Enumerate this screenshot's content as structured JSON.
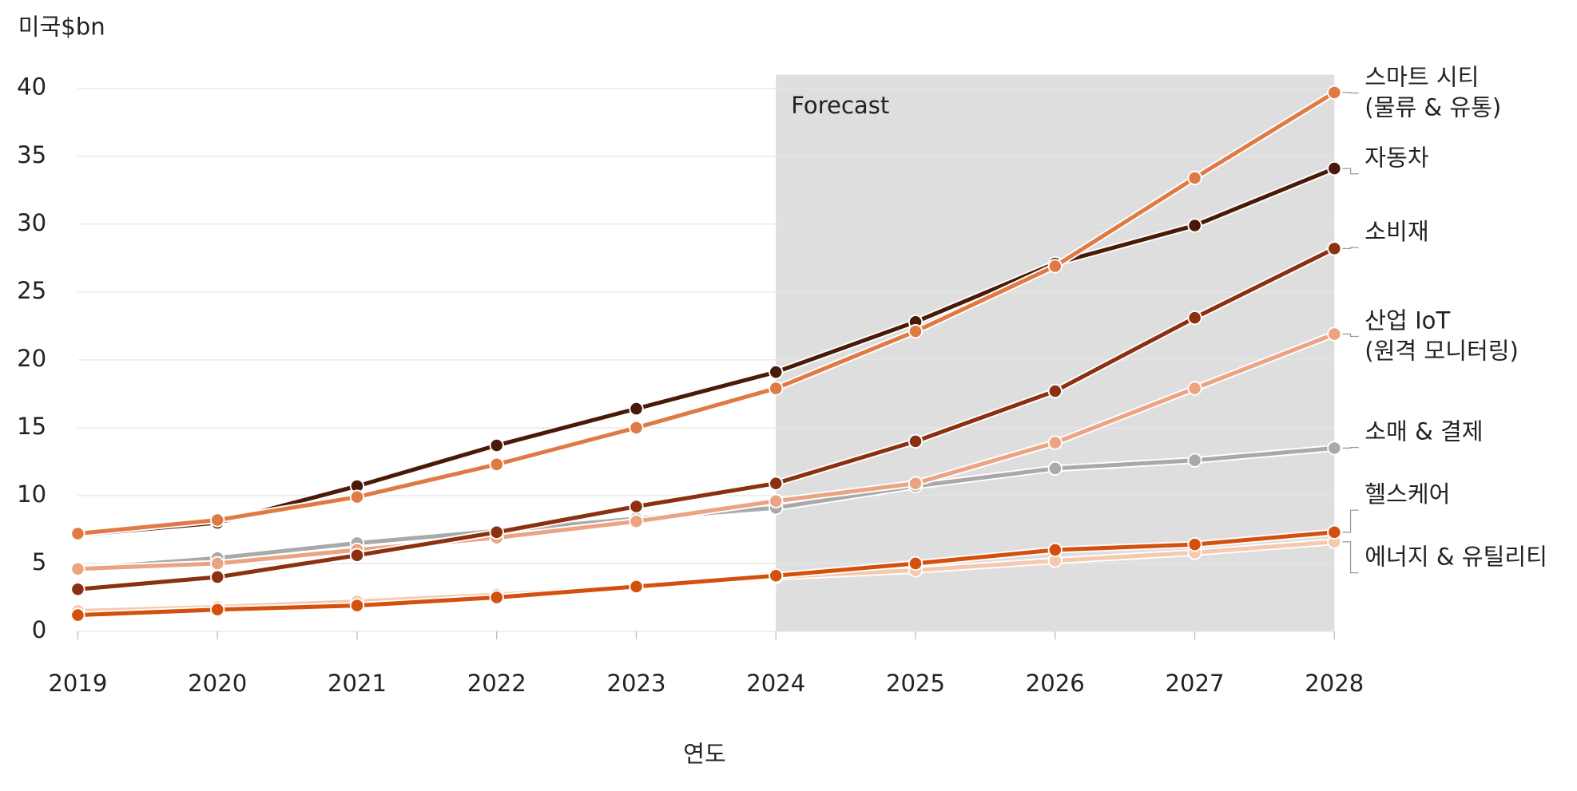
{
  "chart_data": {
    "type": "line",
    "y_label": "미국$bn",
    "x_label": "연도",
    "x": [
      2019,
      2020,
      2021,
      2022,
      2023,
      2024,
      2025,
      2026,
      2027,
      2028
    ],
    "xlim": [
      2019,
      2028
    ],
    "xticks": [
      2019,
      2020,
      2021,
      2022,
      2023,
      2024,
      2025,
      2026,
      2027,
      2028
    ],
    "ylim": [
      0,
      41
    ],
    "yticks": [
      0,
      5,
      10,
      15,
      20,
      25,
      30,
      35,
      40
    ],
    "grid": true,
    "forecast": {
      "label": "Forecast",
      "start": 2024,
      "end": 2028,
      "color": "#dedede"
    },
    "series": [
      {
        "name": "스마트 시티\n(물류 & 유통)",
        "color": "#e07a45",
        "values": [
          7.2,
          8.2,
          9.9,
          12.3,
          15.0,
          17.9,
          22.1,
          26.9,
          33.4,
          39.7
        ]
      },
      {
        "name": "자동차",
        "color": "#4a1a08",
        "values": [
          7.1,
          8.0,
          10.7,
          13.7,
          16.4,
          19.1,
          22.8,
          27.1,
          29.9,
          34.1
        ]
      },
      {
        "name": "소비재",
        "color": "#8b3010",
        "values": [
          3.1,
          4.0,
          5.6,
          7.3,
          9.2,
          10.9,
          14.0,
          17.7,
          23.1,
          28.2
        ]
      },
      {
        "name": "산업 IoT\n(원격 모니터링)",
        "color": "#eba382",
        "values": [
          4.6,
          5.0,
          6.0,
          6.9,
          8.1,
          9.6,
          10.9,
          13.9,
          17.9,
          21.9
        ]
      },
      {
        "name": "소매 & 결제",
        "color": "#a9a9a9",
        "values": [
          4.6,
          5.4,
          6.5,
          7.4,
          8.3,
          9.1,
          10.7,
          12.0,
          12.6,
          13.5
        ]
      },
      {
        "name": "헬스케어",
        "color": "#d4500e",
        "values": [
          1.2,
          1.6,
          1.9,
          2.5,
          3.3,
          4.1,
          5.0,
          6.0,
          6.4,
          7.3
        ]
      },
      {
        "name": "에너지 & 유틸리티",
        "color": "#f5c9ad",
        "values": [
          1.5,
          1.8,
          2.2,
          2.7,
          3.3,
          4.0,
          4.5,
          5.2,
          5.8,
          6.6
        ]
      }
    ]
  }
}
